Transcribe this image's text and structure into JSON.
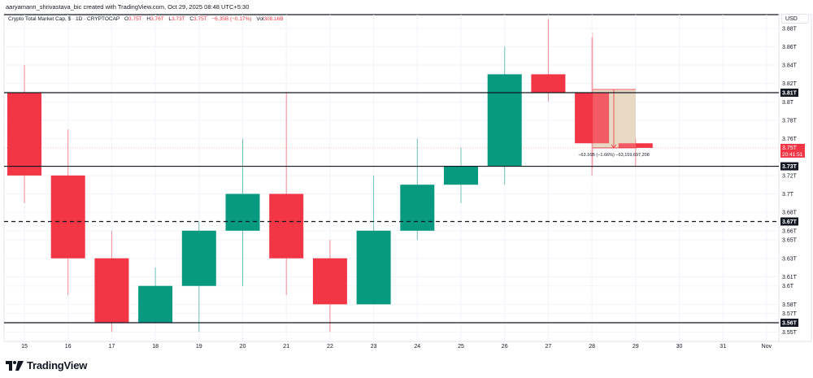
{
  "header": {
    "credit": "aaryamann_shrivastava_bic created with TradingView.com, Oct 29, 2025 08:48 UTC+5:30"
  },
  "legend": {
    "symbol": "Crypto Total Market Cap, $ · 1D · CRYPTOCAP",
    "o_label": "O",
    "o_value": "3.75T",
    "h_label": "H",
    "h_value": "3.76T",
    "l_label": "L",
    "l_value": "3.73T",
    "c_label": "C",
    "c_value": "3.75T",
    "change": "−6.35B (−0.17%)",
    "vol_label": "Vol",
    "vol_value": "308.16B"
  },
  "price_axis": {
    "currency": "USD",
    "ticks": [
      "3.88T",
      "3.86T",
      "3.84T",
      "3.82T",
      "3.8T",
      "3.78T",
      "3.76T",
      "3.72T",
      "3.7T",
      "3.68T",
      "3.66T",
      "3.65T",
      "3.63T",
      "3.61T",
      "3.6T",
      "3.58T",
      "3.57T",
      "3.55T"
    ],
    "level_labels": [
      "3.81T",
      "3.73T",
      "3.67T",
      "3.56T"
    ],
    "current_price": "3.75T",
    "countdown": "20:41:51"
  },
  "time_axis": {
    "ticks": [
      "15",
      "16",
      "17",
      "18",
      "19",
      "20",
      "21",
      "22",
      "23",
      "24",
      "25",
      "26",
      "27",
      "28",
      "29",
      "30",
      "31",
      "Nov"
    ]
  },
  "measure": {
    "label": "−63.16B (−1.66%) −63,159,697,208"
  },
  "brand": {
    "name": "TradingView"
  },
  "colors": {
    "up": "#089981",
    "down": "#f23645",
    "level_line": "#131722",
    "measure_fill": "#e0f7d9"
  },
  "chart_data": {
    "type": "candlestick",
    "title": "Crypto Total Market Cap, $ · 1D · CRYPTOCAP",
    "xlabel": "",
    "ylabel": "USD",
    "ylim": [
      3.55,
      3.89
    ],
    "categories": [
      "15",
      "16",
      "17",
      "18",
      "19",
      "20",
      "21",
      "22",
      "23",
      "24",
      "25",
      "26",
      "27",
      "28",
      "29"
    ],
    "series": [
      {
        "name": "open",
        "values": [
          3.81,
          3.72,
          3.63,
          3.56,
          3.6,
          3.66,
          3.7,
          3.63,
          3.58,
          3.66,
          3.71,
          3.73,
          3.83,
          3.81,
          3.755
        ]
      },
      {
        "name": "high",
        "values": [
          3.84,
          3.77,
          3.66,
          3.62,
          3.67,
          3.76,
          3.81,
          3.65,
          3.72,
          3.76,
          3.75,
          3.86,
          3.89,
          3.87,
          3.76
        ]
      },
      {
        "name": "low",
        "values": [
          3.69,
          3.59,
          3.55,
          3.56,
          3.55,
          3.6,
          3.59,
          3.55,
          3.58,
          3.65,
          3.69,
          3.71,
          3.8,
          3.72,
          3.73
        ]
      },
      {
        "name": "close",
        "values": [
          3.72,
          3.63,
          3.56,
          3.6,
          3.66,
          3.7,
          3.63,
          3.58,
          3.66,
          3.71,
          3.73,
          3.83,
          3.81,
          3.755,
          3.75
        ]
      }
    ],
    "horizontal_levels": [
      {
        "value": 3.81,
        "style": "solid"
      },
      {
        "value": 3.73,
        "style": "solid"
      },
      {
        "value": 3.67,
        "style": "dashed"
      },
      {
        "value": 3.56,
        "style": "solid"
      }
    ],
    "current_price": 3.75,
    "annotations": [
      "−63.16B (−1.66%) −63,159,697,208"
    ],
    "grid": true
  }
}
